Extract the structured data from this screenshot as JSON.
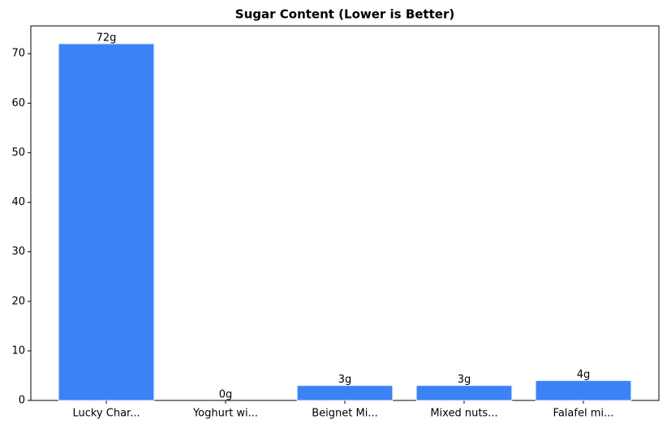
{
  "chart_data": {
    "type": "bar",
    "title": "Sugar Content (Lower is Better)",
    "categories": [
      "Lucky Char...",
      "Yoghurt wi...",
      "Beignet Mi...",
      "Mixed nuts...",
      "Falafel mi..."
    ],
    "values": [
      72,
      0,
      3,
      3,
      4
    ],
    "value_labels": [
      "72g",
      "0g",
      "3g",
      "3g",
      "4g"
    ],
    "color": "#3b82f6",
    "ylim": [
      0,
      75.6
    ],
    "yticks": [
      0,
      10,
      20,
      30,
      40,
      50,
      60,
      70
    ],
    "grid": false
  }
}
